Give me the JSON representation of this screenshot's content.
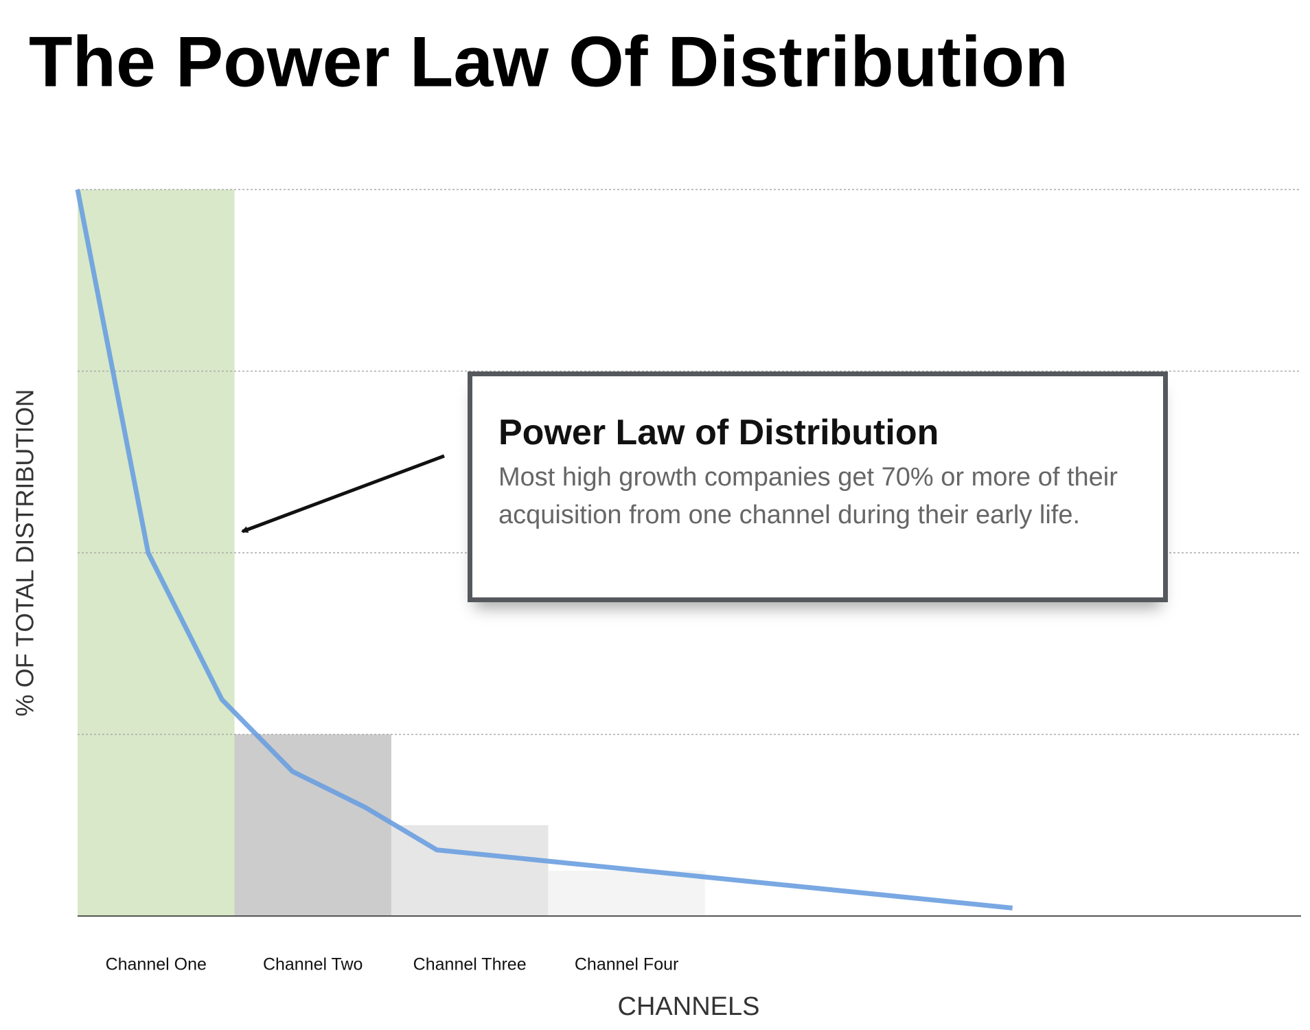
{
  "chart_data": {
    "type": "bar",
    "title": "The Power Law Of Distribution",
    "xlabel": "CHANNELS",
    "ylabel": "% OF TOTAL DISTRIBUTION",
    "categories": [
      "Channel One",
      "Channel Two",
      "Channel Three",
      "Channel Four"
    ],
    "values": [
      100,
      25,
      12.5,
      6.25
    ],
    "colors": [
      "#d8e8c8",
      "#cccccc",
      "#e6e6e6",
      "#f4f4f4"
    ],
    "ylim": [
      0,
      100
    ],
    "yticks": [
      0,
      25,
      50,
      75,
      100
    ],
    "grid": true,
    "xlim": [
      0,
      7.8
    ],
    "line": {
      "x": [
        0,
        0.45,
        0.92,
        1.37,
        1.83,
        2.29,
        5.96
      ],
      "values": [
        100,
        50,
        29.8,
        19.9,
        15,
        9.1,
        1.1
      ],
      "color": "#6a9fe0"
    },
    "annotation": {
      "title": "Power Law of Distribution",
      "text": "Most high growth companies get 70% or more of their acquisition from one channel during their early life."
    }
  }
}
